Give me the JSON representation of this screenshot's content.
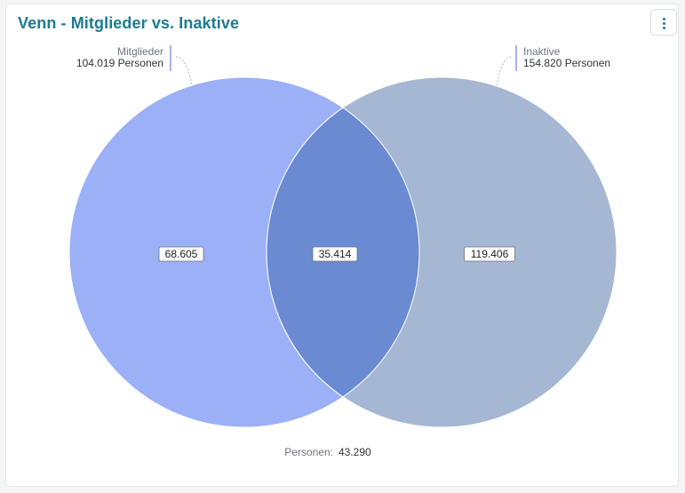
{
  "header": {
    "title": "Venn - Mitglieder vs. Inaktive"
  },
  "chart_data": {
    "type": "venn",
    "sets": [
      {
        "name": "Mitglieder",
        "total_label": "104.019 Personen",
        "total": 104019,
        "only_label": "68.605",
        "only": 68605,
        "color": "#9bb0f7"
      },
      {
        "name": "Inaktive",
        "total_label": "154.820 Personen",
        "total": 154820,
        "only_label": "119.406",
        "only": 119406,
        "color": "#a5b7d2"
      }
    ],
    "intersection": {
      "label": "35.414",
      "value": 35414,
      "color": "#6a8ad2"
    },
    "outside": {
      "label": "Personen:",
      "value_label": "43.290",
      "value": 43290
    },
    "title": "Venn - Mitglieder vs. Inaktive"
  }
}
